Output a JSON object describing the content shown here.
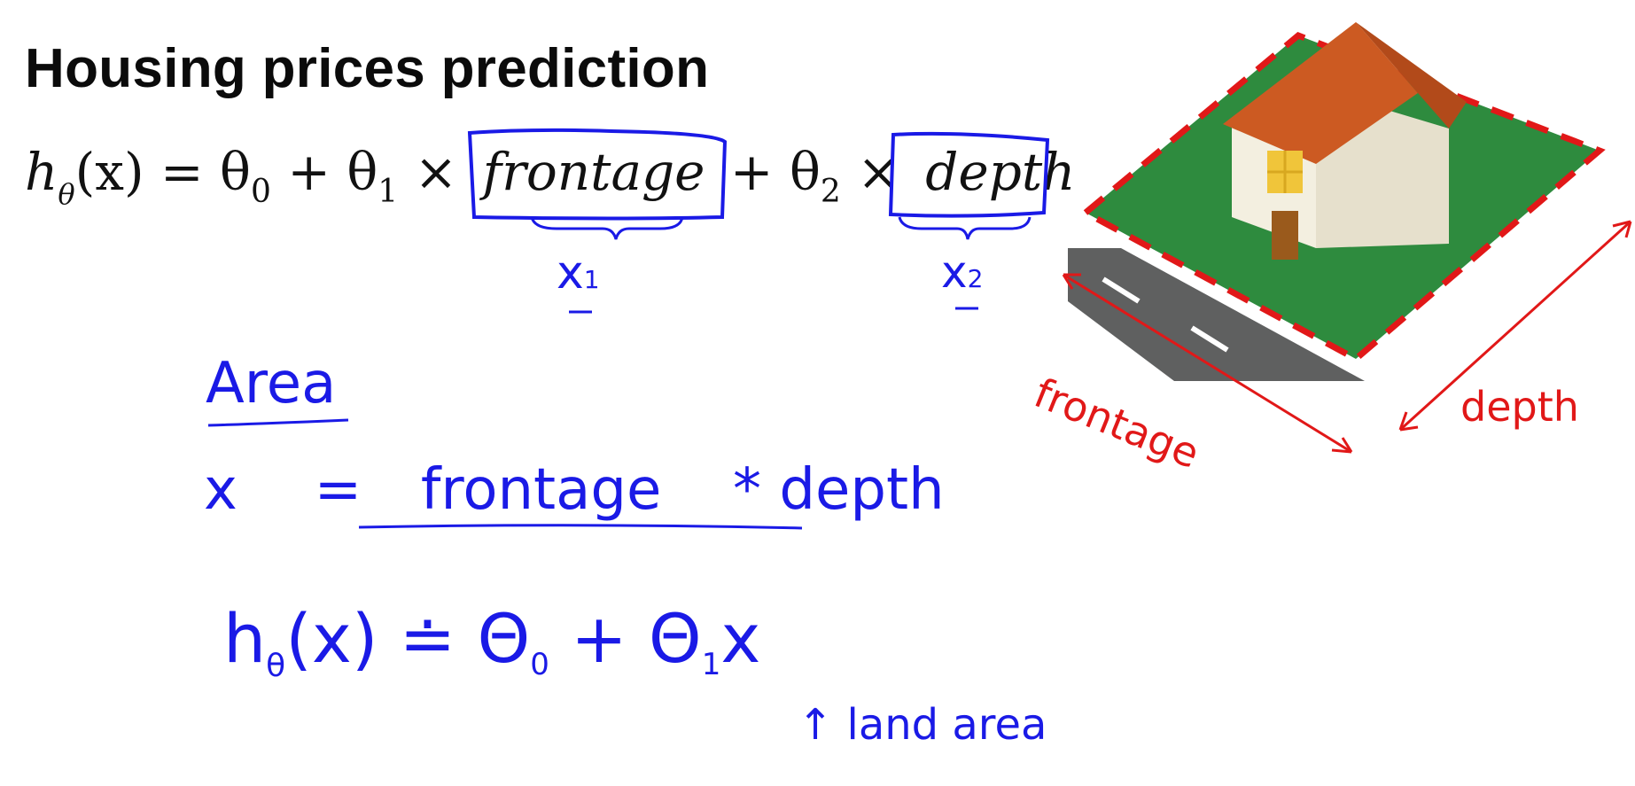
{
  "slide": {
    "title": "Housing prices prediction",
    "equation1": {
      "h": "h",
      "h_sub": "θ",
      "arg": "(x) = θ",
      "t0_sub": "0",
      "plus1": " + θ",
      "t1_sub": "1",
      "times1": " × ",
      "term1": "frontage",
      "plus2": " + θ",
      "t2_sub": "2",
      "times2": " × ",
      "term2": "depth"
    },
    "annotations": {
      "x1": "x",
      "x1_sub": "1",
      "x2": "x",
      "x2_sub": "2",
      "area_heading": "Area",
      "area_eq_lhs": "x",
      "area_eq_sign": "=",
      "area_eq_rhs_a": "frontage",
      "area_eq_star": "*",
      "area_eq_rhs_b": "depth",
      "h2_h": "h",
      "h2_sub": "θ",
      "h2_rest": "(x) ≐ Θ",
      "h2_t0_sub": "0",
      "h2_plus": " + Θ",
      "h2_t1_sub": "1",
      "h2_x": "x",
      "land_area_arrow": "↑",
      "land_area": "land area",
      "frontage_label": "frontage",
      "depth_label": "depth"
    },
    "colors": {
      "ink_blue": "#1a1ae6",
      "ink_red": "#e11818",
      "lawn": "#2e8b3e",
      "roof": "#cc5a22",
      "wall": "#f3efe0",
      "road": "#5f6060",
      "door": "#9a5a1c",
      "window": "#f0c53a"
    },
    "icons": [
      "house-illustration"
    ]
  }
}
